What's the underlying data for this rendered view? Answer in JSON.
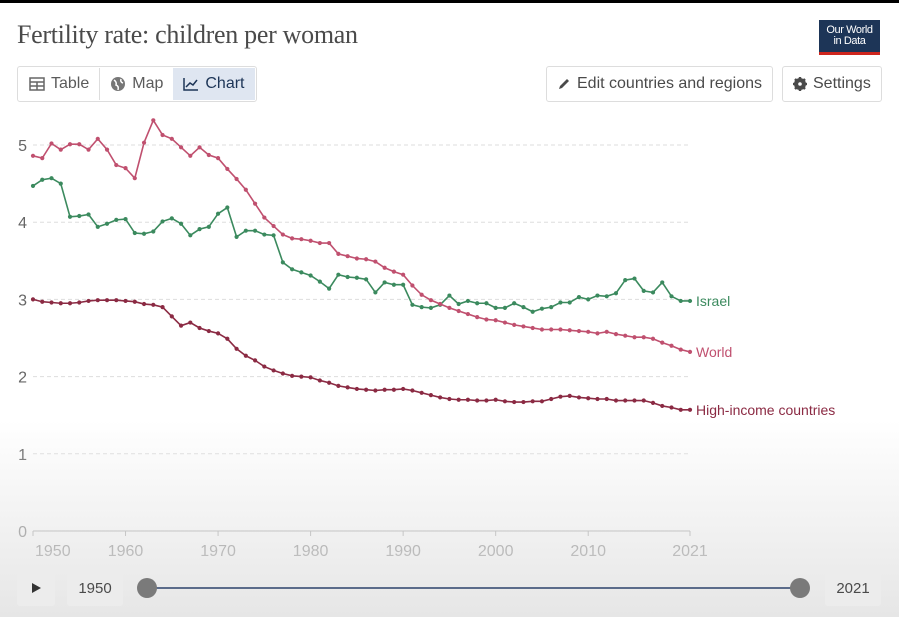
{
  "header": {
    "title": "Fertility rate: children per woman",
    "logo": "Our World in Data"
  },
  "tabs": [
    {
      "label": "Table",
      "icon": "table-icon"
    },
    {
      "label": "Map",
      "icon": "globe-icon"
    },
    {
      "label": "Chart",
      "icon": "line-chart-icon",
      "active": true
    }
  ],
  "toolbar": {
    "edit_label": "Edit countries and regions",
    "settings_label": "Settings"
  },
  "timeline": {
    "start": "1950",
    "end": "2021"
  },
  "chart_data": {
    "type": "line",
    "title": "Fertility rate: children per woman",
    "xlim": [
      1950,
      2021
    ],
    "ylim": [
      0,
      5
    ],
    "x_ticks": [
      "1950",
      "1960",
      "1970",
      "1980",
      "1990",
      "2000",
      "2010",
      "2021"
    ],
    "y_ticks": [
      "0",
      "1",
      "2",
      "3",
      "4",
      "5"
    ],
    "grid": "horizontal dashed",
    "legend": "inline-right",
    "x_start": 1950,
    "series": [
      {
        "name": "Israel",
        "color": "#3b8a5e",
        "values": [
          4.47,
          4.55,
          4.57,
          4.5,
          4.07,
          4.08,
          4.1,
          3.94,
          3.98,
          4.03,
          4.04,
          3.86,
          3.85,
          3.88,
          4.01,
          4.05,
          3.98,
          3.83,
          3.91,
          3.94,
          4.11,
          4.19,
          3.81,
          3.89,
          3.89,
          3.84,
          3.83,
          3.48,
          3.39,
          3.35,
          3.31,
          3.23,
          3.14,
          3.32,
          3.29,
          3.28,
          3.26,
          3.09,
          3.22,
          3.19,
          3.19,
          2.93,
          2.9,
          2.89,
          2.93,
          3.05,
          2.94,
          2.98,
          2.95,
          2.95,
          2.89,
          2.89,
          2.95,
          2.9,
          2.84,
          2.88,
          2.9,
          2.96,
          2.96,
          3.03,
          3.0,
          3.05,
          3.04,
          3.08,
          3.25,
          3.27,
          3.11,
          3.09,
          3.22,
          3.04,
          2.98,
          2.98
        ]
      },
      {
        "name": "World",
        "color": "#c0506f",
        "values": [
          4.86,
          4.83,
          5.02,
          4.94,
          5.01,
          5.01,
          4.94,
          5.08,
          4.94,
          4.74,
          4.7,
          4.57,
          5.03,
          5.32,
          5.13,
          5.08,
          4.97,
          4.86,
          4.97,
          4.87,
          4.83,
          4.69,
          4.56,
          4.42,
          4.24,
          4.06,
          3.95,
          3.84,
          3.79,
          3.78,
          3.76,
          3.73,
          3.73,
          3.59,
          3.56,
          3.53,
          3.52,
          3.49,
          3.41,
          3.36,
          3.32,
          3.18,
          3.06,
          2.99,
          2.94,
          2.89,
          2.85,
          2.81,
          2.77,
          2.74,
          2.73,
          2.7,
          2.67,
          2.65,
          2.63,
          2.61,
          2.61,
          2.61,
          2.6,
          2.59,
          2.58,
          2.56,
          2.58,
          2.55,
          2.53,
          2.51,
          2.51,
          2.49,
          2.44,
          2.4,
          2.35,
          2.32
        ]
      },
      {
        "name": "High-income countries",
        "color": "#8b2a43",
        "values": [
          3.0,
          2.97,
          2.96,
          2.95,
          2.95,
          2.96,
          2.98,
          2.99,
          2.99,
          2.99,
          2.98,
          2.97,
          2.94,
          2.93,
          2.9,
          2.78,
          2.66,
          2.7,
          2.63,
          2.59,
          2.56,
          2.49,
          2.36,
          2.27,
          2.21,
          2.13,
          2.08,
          2.04,
          2.01,
          2.0,
          1.99,
          1.95,
          1.92,
          1.88,
          1.86,
          1.84,
          1.83,
          1.82,
          1.83,
          1.83,
          1.84,
          1.82,
          1.79,
          1.76,
          1.73,
          1.71,
          1.7,
          1.7,
          1.69,
          1.69,
          1.7,
          1.68,
          1.67,
          1.67,
          1.68,
          1.68,
          1.71,
          1.74,
          1.75,
          1.73,
          1.72,
          1.71,
          1.71,
          1.69,
          1.69,
          1.69,
          1.69,
          1.66,
          1.62,
          1.6,
          1.57,
          1.57
        ]
      }
    ]
  }
}
